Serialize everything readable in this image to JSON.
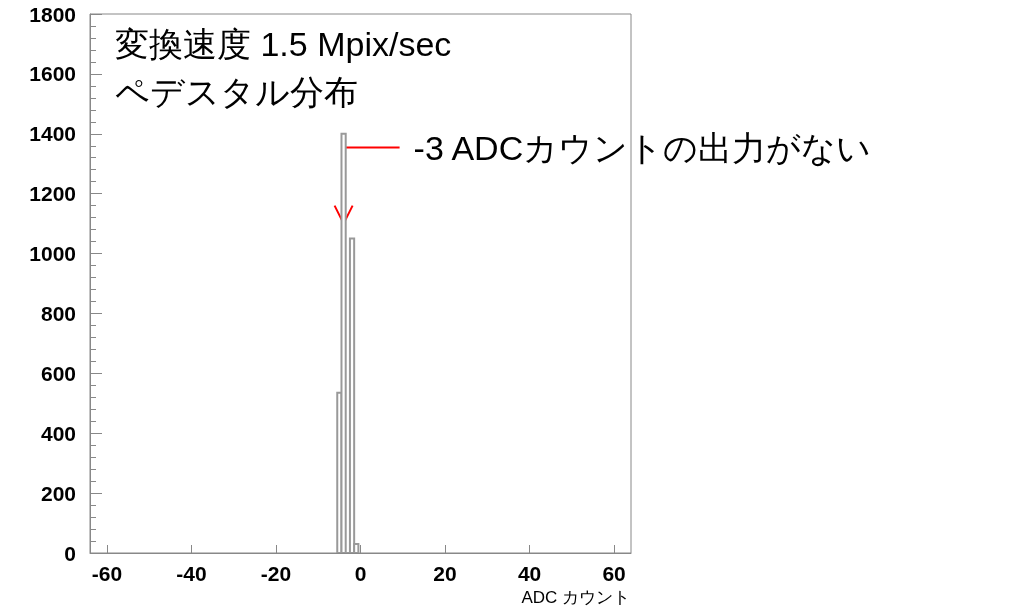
{
  "chart_data": {
    "type": "histogram",
    "title": "変換速度 1.5 Mpix/sec",
    "subtitle": "ペデスタル分布",
    "xlabel": "ADC カウント",
    "bins": [
      -5.5,
      -4.5,
      -3.5,
      -2.5,
      -1.5,
      -0.5
    ],
    "values": [
      535,
      1400,
      0,
      1050,
      30
    ],
    "color": "#999999",
    "xlim": [
      -64,
      64
    ],
    "xticks": [
      -60,
      -40,
      -20,
      0,
      20,
      40,
      60
    ],
    "ylim": [
      0,
      1800
    ],
    "yticks": [
      0,
      200,
      400,
      600,
      800,
      1000,
      1200,
      1400,
      1600,
      1800
    ],
    "annotations": [
      {
        "text": "-3 ADCカウントの出力がない",
        "x": -4,
        "y": 1100
      }
    ],
    "grid": false
  }
}
